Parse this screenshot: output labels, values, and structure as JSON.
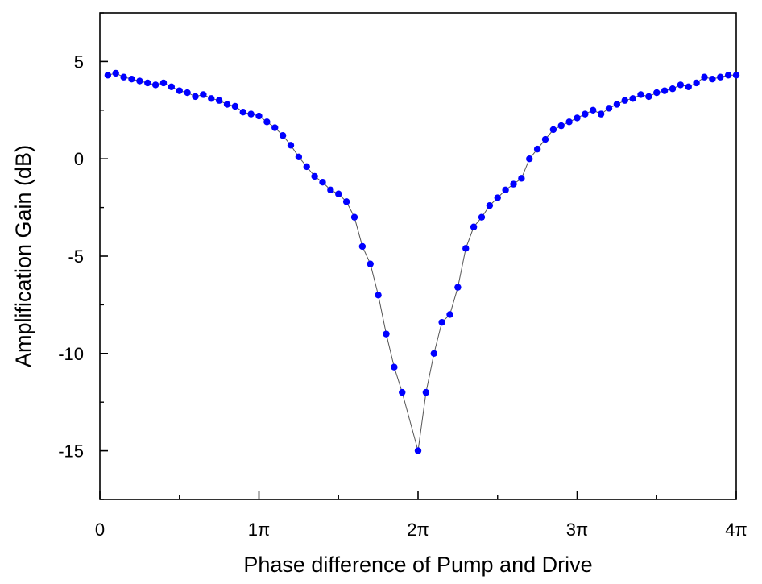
{
  "chart_data": {
    "type": "line",
    "title": "",
    "xlabel": "Phase difference of Pump and Drive",
    "ylabel": "Amplification Gain (dB)",
    "xlim": [
      0,
      4
    ],
    "ylim": [
      -17.5,
      7.5
    ],
    "x_unit": "π",
    "xticks": [
      0,
      1,
      2,
      3,
      4
    ],
    "xtick_labels": [
      "0",
      "1π",
      "2π",
      "3π",
      "4π"
    ],
    "yticks": [
      5,
      0,
      -5,
      -10,
      -15
    ],
    "ytick_labels": [
      "5",
      "0",
      "-5",
      "-10",
      "-15"
    ],
    "grid": false,
    "legend": null,
    "line_color": "#555555",
    "marker_color": "#0000ff",
    "series": [
      {
        "x": [
          0.05,
          0.1,
          0.15,
          0.2,
          0.25,
          0.3,
          0.35,
          0.4,
          0.45,
          0.5,
          0.55,
          0.6,
          0.65,
          0.7,
          0.75,
          0.8,
          0.85,
          0.9,
          0.95,
          1.0,
          1.05,
          1.1,
          1.15,
          1.2,
          1.25,
          1.3,
          1.35,
          1.4,
          1.45,
          1.5,
          1.55,
          1.6,
          1.65,
          1.7,
          1.75,
          1.8,
          1.85,
          1.9,
          2.0,
          2.05,
          2.1,
          2.15,
          2.2,
          2.25,
          2.3,
          2.35,
          2.4,
          2.45,
          2.5,
          2.55,
          2.6,
          2.65,
          2.7,
          2.75,
          2.8,
          2.85,
          2.9,
          2.95,
          3.0,
          3.05,
          3.1,
          3.15,
          3.2,
          3.25,
          3.3,
          3.35,
          3.4,
          3.45,
          3.5,
          3.55,
          3.6,
          3.65,
          3.7,
          3.75,
          3.8,
          3.85,
          3.9,
          3.95,
          4.0
        ],
        "y": [
          4.3,
          4.4,
          4.2,
          4.1,
          4.0,
          3.9,
          3.8,
          3.9,
          3.7,
          3.5,
          3.4,
          3.2,
          3.3,
          3.1,
          3.0,
          2.8,
          2.7,
          2.4,
          2.3,
          2.2,
          1.9,
          1.6,
          1.2,
          0.7,
          0.1,
          -0.4,
          -0.9,
          -1.2,
          -1.6,
          -1.8,
          -2.2,
          -3.0,
          -4.5,
          -5.4,
          -7.0,
          -9.0,
          -10.7,
          -12.0,
          -15.0,
          -12.0,
          -10.0,
          -8.4,
          -8.0,
          -6.6,
          -4.6,
          -3.5,
          -3.0,
          -2.4,
          -2.0,
          -1.6,
          -1.3,
          -1.0,
          0.0,
          0.5,
          1.0,
          1.5,
          1.7,
          1.9,
          2.1,
          2.3,
          2.5,
          2.3,
          2.6,
          2.8,
          3.0,
          3.1,
          3.3,
          3.2,
          3.4,
          3.5,
          3.6,
          3.8,
          3.7,
          3.9,
          4.2,
          4.1,
          4.2,
          4.3,
          4.3
        ]
      }
    ]
  }
}
